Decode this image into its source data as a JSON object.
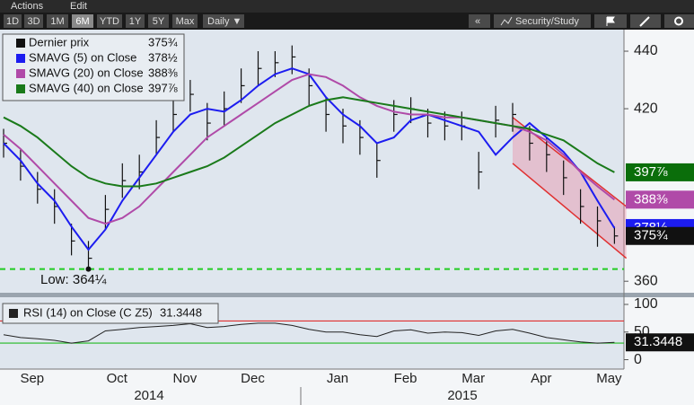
{
  "toolbar": {
    "menu": [
      "Actions",
      "Edit"
    ],
    "ranges": [
      "1D",
      "3D",
      "1M",
      "6M",
      "YTD",
      "1Y",
      "5Y",
      "Max"
    ],
    "active": "6M",
    "frequency": "Daily ▼",
    "back": "«",
    "study": "Security/Study"
  },
  "chart_data": [
    {
      "type": "ohlc",
      "ylim": [
        356,
        447.5
      ],
      "yticks": [
        360,
        420,
        440
      ],
      "categories": [
        null,
        null,
        "Sep",
        null,
        null,
        null,
        null,
        "Oct",
        null,
        null,
        null,
        "Nov",
        null,
        null,
        null,
        "Dec",
        null,
        null,
        null,
        null,
        "Jan",
        null,
        null,
        null,
        "Feb",
        null,
        null,
        null,
        "Mar",
        null,
        null,
        null,
        "Apr",
        null,
        null,
        null,
        "May"
      ],
      "years": [
        "2014",
        "2015"
      ],
      "series": [
        {
          "name": "Dernier prix",
          "color": "#111111",
          "values": [
            408,
            400,
            392,
            386,
            374,
            368,
            385,
            395,
            398,
            410,
            418,
            425,
            415,
            420,
            428,
            434,
            436,
            438,
            428,
            418,
            414,
            410,
            402,
            418,
            420,
            415,
            414,
            414,
            398,
            416,
            418,
            408,
            404,
            396,
            386,
            381,
            375.75
          ],
          "high": [
            413,
            406,
            398,
            392,
            380,
            374,
            390,
            401,
            404,
            416,
            424,
            430,
            422,
            426,
            434,
            440,
            440,
            442,
            434,
            424,
            420,
            416,
            408,
            423,
            424,
            420,
            419,
            419,
            405,
            421,
            422,
            414,
            410,
            402,
            392,
            386,
            379
          ],
          "low": [
            403,
            395,
            387,
            380,
            369,
            364.25,
            378,
            389,
            392,
            404,
            412,
            419,
            409,
            414,
            422,
            428,
            431,
            432,
            421,
            412,
            408,
            404,
            396,
            412,
            415,
            410,
            409,
            409,
            392,
            410,
            412,
            402,
            398,
            390,
            380,
            372,
            373
          ],
          "value_labels": [
            null,
            null,
            null,
            null,
            null,
            null,
            null,
            null,
            null,
            null,
            null,
            null,
            null,
            null,
            null,
            null,
            null,
            null,
            null,
            null,
            null,
            null,
            null,
            null,
            null,
            null,
            null,
            null,
            null,
            null,
            null,
            null,
            null,
            null,
            null,
            null,
            "375¾"
          ]
        },
        {
          "name": "SMAVG (5) on Close",
          "color": "#1c1cf0",
          "values": [
            408,
            402,
            394,
            388,
            379,
            371,
            378,
            388,
            396,
            404,
            412,
            418,
            420,
            419,
            423,
            428,
            432,
            434,
            432,
            424,
            418,
            414,
            408,
            410,
            416,
            418,
            416,
            414,
            412,
            404,
            410,
            415,
            410,
            405,
            398,
            388,
            378.5
          ],
          "value_labels": [
            null,
            null,
            null,
            null,
            null,
            null,
            null,
            null,
            null,
            null,
            null,
            null,
            null,
            null,
            null,
            null,
            null,
            null,
            null,
            null,
            null,
            null,
            null,
            null,
            null,
            null,
            null,
            null,
            null,
            null,
            null,
            null,
            null,
            null,
            null,
            null,
            "378½"
          ]
        },
        {
          "name": "SMAVG (20) on Close",
          "color": "#b04aa8",
          "values": [
            411,
            406,
            400,
            394,
            388,
            382,
            380,
            382,
            386,
            392,
            398,
            404,
            410,
            414,
            418,
            422,
            426,
            430,
            432,
            431,
            428,
            424,
            421,
            419,
            418,
            418,
            417,
            417,
            416,
            415,
            414,
            412,
            409,
            404,
            398,
            393,
            388.375
          ],
          "value_labels": [
            null,
            null,
            null,
            null,
            null,
            null,
            null,
            null,
            null,
            null,
            null,
            null,
            null,
            null,
            null,
            null,
            null,
            null,
            null,
            null,
            null,
            null,
            null,
            null,
            null,
            null,
            null,
            null,
            null,
            null,
            null,
            null,
            null,
            null,
            null,
            null,
            "388⅜"
          ]
        },
        {
          "name": "SMAVG (40) on Close",
          "color": "#1a7a1a",
          "values": [
            417,
            414,
            410,
            405,
            400,
            396,
            394,
            393,
            393,
            394,
            396,
            398,
            400,
            403,
            407,
            411,
            415,
            418,
            421,
            423,
            424,
            423,
            422,
            421,
            420,
            419,
            418,
            417,
            416,
            415,
            414,
            413,
            411,
            409,
            405,
            401,
            397.875
          ],
          "value_labels": [
            null,
            null,
            null,
            null,
            null,
            null,
            null,
            null,
            null,
            null,
            null,
            null,
            null,
            null,
            null,
            null,
            null,
            null,
            null,
            null,
            null,
            null,
            null,
            null,
            null,
            null,
            null,
            null,
            null,
            null,
            null,
            null,
            null,
            null,
            null,
            null,
            "397⅞"
          ]
        }
      ],
      "channel": {
        "from": 30,
        "to": 36.7,
        "upper": [
          417,
          386
        ],
        "lower": [
          401,
          368
        ],
        "color": "#e03030"
      },
      "low": {
        "label": "Low: 364¼",
        "value": 364.25,
        "index": 5,
        "color": "#22cc22"
      }
    },
    {
      "type": "line",
      "ylim": [
        -17,
        113
      ],
      "yticks": [
        0,
        50,
        100
      ],
      "hlines": [
        {
          "value": 70,
          "color": "#e03030"
        },
        {
          "value": 30,
          "color": "#22bb22"
        }
      ],
      "series": [
        {
          "name": "RSI (14) on Close (C Z5)",
          "color": "#222222",
          "values": [
            45,
            40,
            38,
            35,
            30,
            34,
            52,
            55,
            58,
            60,
            62,
            65,
            58,
            60,
            64,
            66,
            66,
            62,
            55,
            50,
            50,
            45,
            42,
            52,
            54,
            48,
            50,
            49,
            44,
            52,
            55,
            48,
            40,
            36,
            32,
            30,
            31.3448
          ]
        }
      ]
    }
  ]
}
